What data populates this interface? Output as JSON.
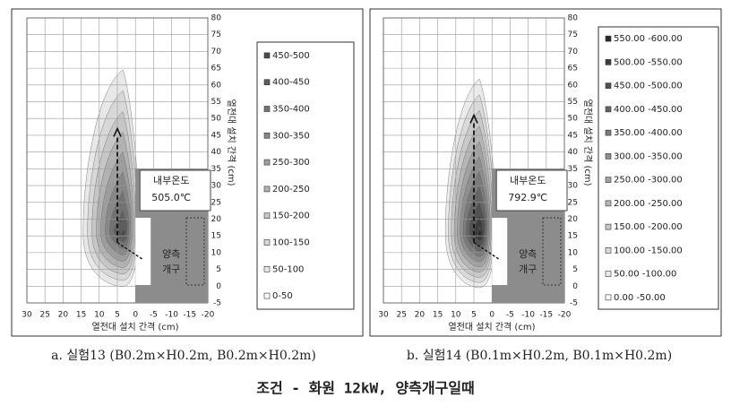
{
  "title": "조건 - 화원 12kW, 양측개구일때",
  "chart_data": [
    {
      "type": "contour",
      "caption": "a. 실험13 (B0.2m×H0.2m, B0.2m×H0.2m)",
      "x_label": "열전대 설치 간격 (cm)",
      "y_label": "열전대 설치 간격 (cm)",
      "xlim": [
        30,
        -20
      ],
      "ylim": [
        -5,
        80
      ],
      "xticks": [
        30,
        25,
        20,
        15,
        10,
        5,
        0,
        -5,
        -10,
        -15,
        -20
      ],
      "yticks": [
        -5,
        0,
        5,
        10,
        15,
        20,
        25,
        30,
        35,
        40,
        45,
        50,
        55,
        60,
        65,
        70,
        75,
        80
      ],
      "temp_label": "내부온도",
      "temp": "505.0℃",
      "opening": [
        "양측",
        "개구"
      ],
      "series": [
        {
          "name": "450-500",
          "color": "#4a4a4a"
        },
        {
          "name": "400-450",
          "color": "#5e5e5e"
        },
        {
          "name": "350-400",
          "color": "#737373"
        },
        {
          "name": "300-350",
          "color": "#888888"
        },
        {
          "name": "250-300",
          "color": "#9d9d9d"
        },
        {
          "name": "200-250",
          "color": "#b2b2b2"
        },
        {
          "name": "150-200",
          "color": "#c6c6c6"
        },
        {
          "name": "100-150",
          "color": "#d8d8d8"
        },
        {
          "name": "50-100",
          "color": "#e8e8e8"
        },
        {
          "name": "0-50",
          "color": "#ffffff"
        }
      ]
    },
    {
      "type": "contour",
      "caption": "b. 실험14 (B0.1m×H0.2m, B0.1m×H0.2m)",
      "x_label": "열전대 설치 간격 (cm)",
      "y_label": "열전대 설치 간격 (cm)",
      "xlim": [
        30,
        -20
      ],
      "ylim": [
        -5,
        80
      ],
      "xticks": [
        30,
        25,
        20,
        15,
        10,
        5,
        0,
        -5,
        -10,
        -15,
        -20
      ],
      "yticks": [
        -5,
        0,
        5,
        10,
        15,
        20,
        25,
        30,
        35,
        40,
        45,
        50,
        55,
        60,
        65,
        70,
        75,
        80
      ],
      "temp_label": "내부온도",
      "temp": "792.9℃",
      "opening": [
        "양측",
        "개구"
      ],
      "series": [
        {
          "name": "550.00 -600.00",
          "color": "#2a2a2a"
        },
        {
          "name": "500.00 -550.00",
          "color": "#3d3d3d"
        },
        {
          "name": "450.00 -500.00",
          "color": "#515151"
        },
        {
          "name": "400.00 -450.00",
          "color": "#656565"
        },
        {
          "name": "350.00 -400.00",
          "color": "#7a7a7a"
        },
        {
          "name": "300.00 -350.00",
          "color": "#8e8e8e"
        },
        {
          "name": "250.00 -300.00",
          "color": "#a2a2a2"
        },
        {
          "name": "200.00 -250.00",
          "color": "#b6b6b6"
        },
        {
          "name": "150.00 -200.00",
          "color": "#c9c9c9"
        },
        {
          "name": "100.00 -150.00",
          "color": "#dadada"
        },
        {
          "name": "50.00 -100.00",
          "color": "#ebebeb"
        },
        {
          "name": "0.00 -50.00",
          "color": "#ffffff"
        }
      ]
    }
  ]
}
